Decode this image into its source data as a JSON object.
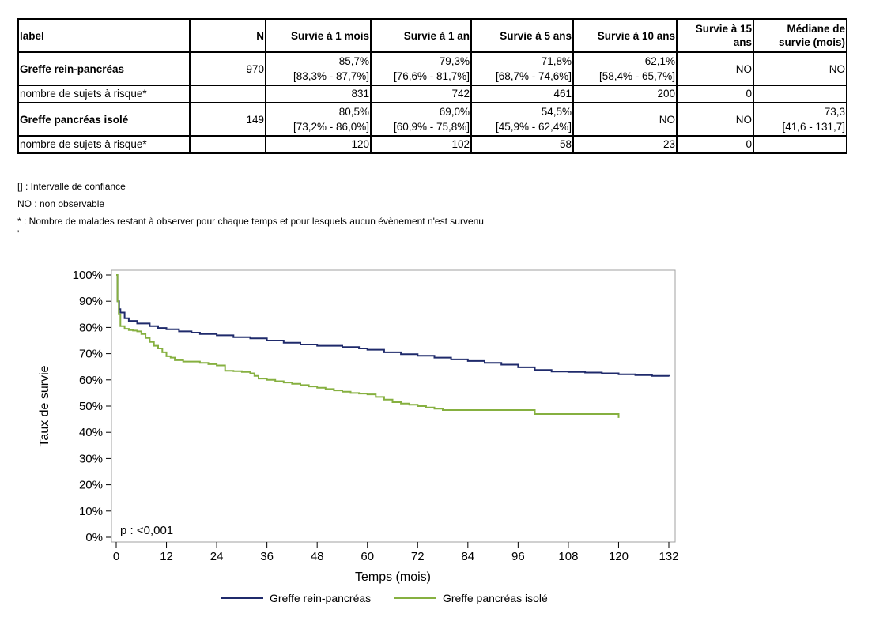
{
  "table": {
    "headers": [
      "label",
      "N",
      "Survie à 1 mois",
      "Survie à 1 an",
      "Survie à 5 ans",
      "Survie à 10 ans",
      "Survie à 15 ans",
      "Médiane de survie (mois)"
    ],
    "rows": [
      {
        "label": "Greffe rein-pancréas",
        "n": "970",
        "values": [
          {
            "value": "85,7%",
            "ci": "[83,3% - 87,7%]"
          },
          {
            "value": "79,3%",
            "ci": "[76,6% - 81,7%]"
          },
          {
            "value": "71,8%",
            "ci": "[68,7% - 74,6%]"
          },
          {
            "value": "62,1%",
            "ci": "[58,4% - 65,7%]"
          },
          {
            "value": "NO",
            "ci": ""
          },
          {
            "value": "NO",
            "ci": ""
          }
        ],
        "risk_label": "nombre de sujets à risque*",
        "risk": [
          "831",
          "742",
          "461",
          "200",
          "0",
          ""
        ]
      },
      {
        "label": "Greffe pancréas isolé",
        "n": "149",
        "values": [
          {
            "value": "80,5%",
            "ci": "[73,2% - 86,0%]"
          },
          {
            "value": "69,0%",
            "ci": "[60,9% - 75,8%]"
          },
          {
            "value": "54,5%",
            "ci": "[45,9% - 62,4%]"
          },
          {
            "value": "NO",
            "ci": ""
          },
          {
            "value": "NO",
            "ci": ""
          },
          {
            "value": "73,3",
            "ci": "[41,6 - 131,7]"
          }
        ],
        "risk_label": "nombre de sujets à risque*",
        "risk": [
          "120",
          "102",
          "58",
          "23",
          "0",
          ""
        ]
      }
    ]
  },
  "notes": [
    "[] : Intervalle de confiance",
    "NO : non observable",
    "* : Nombre de malades restant à observer pour chaque temps et pour lesquels aucun évènement n'est survenu",
    "'"
  ],
  "chart_data": {
    "type": "line",
    "xlabel": "Temps (mois)",
    "ylabel": "Taux de survie",
    "xlim": [
      0,
      132
    ],
    "ylim": [
      0,
      100
    ],
    "xticks": [
      0,
      12,
      24,
      36,
      48,
      60,
      72,
      84,
      96,
      108,
      120,
      132
    ],
    "yticks": [
      0,
      10,
      20,
      30,
      40,
      50,
      60,
      70,
      80,
      90,
      100
    ],
    "ytick_labels": [
      "0%",
      "10%",
      "20%",
      "30%",
      "40%",
      "50%",
      "60%",
      "70%",
      "80%",
      "90%",
      "100%"
    ],
    "annotation": "p : <0,001",
    "legend_position": "bottom",
    "series": [
      {
        "name": "Greffe rein-pancréas",
        "color": "#1f2a6b",
        "x": [
          0,
          0.3,
          0.7,
          1,
          2,
          3,
          5,
          8,
          10,
          12,
          15,
          18,
          20,
          24,
          28,
          32,
          36,
          40,
          44,
          48,
          54,
          58,
          60,
          64,
          68,
          72,
          76,
          80,
          84,
          88,
          92,
          96,
          100,
          104,
          108,
          112,
          116,
          120,
          124,
          128,
          132
        ],
        "y": [
          100,
          90,
          87,
          85.7,
          83.5,
          82.5,
          81.5,
          80.5,
          79.8,
          79.3,
          78.5,
          78,
          77.5,
          77,
          76.3,
          75.8,
          75,
          74.2,
          73.5,
          73,
          72.5,
          72,
          71.5,
          70.5,
          69.8,
          69.2,
          68.5,
          67.8,
          67.2,
          66.5,
          65.8,
          64.8,
          63.8,
          63.2,
          63,
          62.8,
          62.5,
          62.1,
          61.8,
          61.5,
          61.3
        ]
      },
      {
        "name": "Greffe pancréas isolé",
        "color": "#86b040",
        "x": [
          0,
          0.3,
          0.6,
          1,
          2,
          3,
          4,
          5,
          6,
          7,
          8,
          9,
          10,
          11,
          12,
          13,
          14,
          16,
          18,
          20,
          22,
          24,
          26,
          28,
          30,
          32,
          33,
          34,
          36,
          38,
          40,
          42,
          44,
          46,
          48,
          50,
          52,
          54,
          56,
          58,
          60,
          62,
          64,
          66,
          68,
          70,
          72,
          74,
          76,
          78,
          84,
          90,
          96,
          100,
          110,
          120
        ],
        "y": [
          100,
          90,
          85,
          80.5,
          79.5,
          79,
          78.8,
          78.5,
          77.5,
          76,
          74.5,
          73,
          72,
          70.5,
          69,
          68.5,
          67.5,
          67,
          67,
          66.5,
          66,
          65.5,
          63.5,
          63.3,
          63,
          62.5,
          61.5,
          60.5,
          60,
          59.5,
          59,
          58.5,
          58,
          57.5,
          57,
          56.5,
          56,
          55.5,
          55,
          54.8,
          54.5,
          53.5,
          52.5,
          51.5,
          51,
          50.5,
          50,
          49.5,
          49,
          48.5,
          48.5,
          48.5,
          48.5,
          47,
          47,
          45.5
        ]
      }
    ]
  }
}
